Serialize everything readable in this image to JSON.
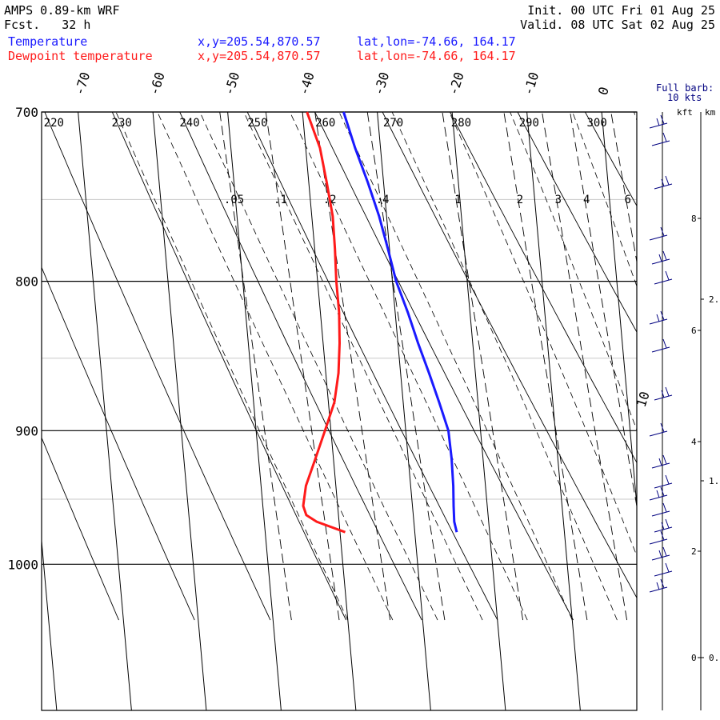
{
  "header": {
    "model": "AMPS 0.89-km WRF",
    "fcst_label": "Fcst.",
    "fcst_hours": "32 h",
    "init": "Init. 00 UTC Fri 01 Aug 25",
    "valid": "Valid. 08 UTC Sat 02 Aug 25",
    "series": [
      {
        "name": "Temperature",
        "xy": "x,y=205.54,870.57",
        "latlon": "lat,lon=-74.66, 164.17",
        "color": "#1a1aff"
      },
      {
        "name": "Dewpoint temperature",
        "xy": "x,y=205.54,870.57",
        "latlon": "lat,lon=-74.66, 164.17",
        "color": "#ff1a1a"
      }
    ]
  },
  "barb_legend": {
    "line1": "Full barb:",
    "line2": "10 kts"
  },
  "height_axis": {
    "kft_label": "kft",
    "km_label": "km",
    "kft_ticks": [
      "8",
      "6",
      "4",
      "2",
      "0"
    ],
    "km_ticks": [
      "2.",
      "1.",
      "0."
    ]
  },
  "chart_data": {
    "type": "line",
    "chart_kind": "skew-T log-p diagram",
    "y_axis": {
      "quantity": "pressure (hPa)",
      "scale": "log",
      "range": [
        1040,
        700
      ],
      "ticks": [
        700,
        800,
        900,
        1000
      ]
    },
    "temperature_ticks": [
      "-70",
      "-60",
      "-50",
      "-40",
      "-30",
      "-20",
      "-10",
      "0",
      "10"
    ],
    "theta_labels": [
      "220",
      "230",
      "240",
      "250",
      "260",
      "270",
      "280",
      "290",
      "300"
    ],
    "mixing_ratio_labels": [
      ".05",
      ".1",
      ".2",
      ".4",
      "1",
      "2",
      "3",
      "4",
      "6"
    ],
    "grid": true,
    "series": [
      {
        "name": "Temperature",
        "color": "#1a1aff",
        "p": [
          700,
          720,
          740,
          760,
          780,
          800,
          820,
          840,
          860,
          880,
          900,
          920,
          940,
          955,
          967,
          975
        ],
        "t": [
          -34.5,
          -33.4,
          -32.1,
          -31.0,
          -30.2,
          -29.5,
          -28.3,
          -27.3,
          -26.2,
          -25.2,
          -24.3,
          -24.2,
          -24.3,
          -24.5,
          -24.6,
          -24.4
        ]
      },
      {
        "name": "Dewpoint temperature",
        "color": "#ff1a1a",
        "p": [
          700,
          720,
          740,
          760,
          780,
          800,
          820,
          840,
          860,
          880,
          900,
          920,
          940,
          955,
          962,
          967,
          975
        ],
        "t": [
          -39.4,
          -38.1,
          -37.6,
          -37.2,
          -37.3,
          -37.5,
          -37.5,
          -37.8,
          -38.3,
          -39.2,
          -40.8,
          -42.4,
          -44.0,
          -44.6,
          -44.3,
          -43.0,
          -39.3
        ]
      }
    ],
    "wind_barbs": {
      "units": "kts",
      "full_barb": 10
    }
  }
}
